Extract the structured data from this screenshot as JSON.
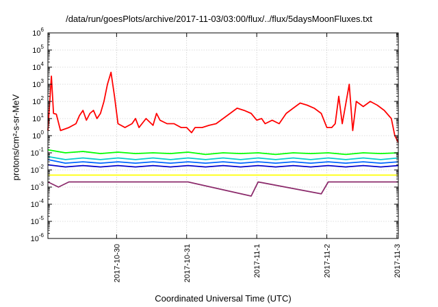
{
  "chart_data": {
    "type": "line",
    "title": "/data/run/goesPlots/archive/2017-11-03/03:00/flux/../flux/5daysMoonFluxes.txt",
    "xlabel": "Coordinated Universal Time (UTC)",
    "ylabel": "protons/cm²-s-sr-MeV",
    "yscale": "log",
    "ylim": [
      1e-06,
      1000000.0
    ],
    "xlim": [
      0,
      5.0
    ],
    "x_unit": "days",
    "yticks": [
      {
        "value": 1e-06,
        "label_base": "10",
        "label_exp": "-6"
      },
      {
        "value": 1e-05,
        "label_base": "10",
        "label_exp": "-5"
      },
      {
        "value": 0.0001,
        "label_base": "10",
        "label_exp": "-4"
      },
      {
        "value": 0.001,
        "label_base": "10",
        "label_exp": "-3"
      },
      {
        "value": 0.01,
        "label_base": "10",
        "label_exp": "-2"
      },
      {
        "value": 0.1,
        "label_base": "10",
        "label_exp": "-1"
      },
      {
        "value": 1,
        "label_base": "10",
        "label_exp": "0"
      },
      {
        "value": 10.0,
        "label_base": "10",
        "label_exp": "1"
      },
      {
        "value": 100.0,
        "label_base": "10",
        "label_exp": "2"
      },
      {
        "value": 1000.0,
        "label_base": "10",
        "label_exp": "3"
      },
      {
        "value": 10000.0,
        "label_base": "10",
        "label_exp": "4"
      },
      {
        "value": 100000.0,
        "label_base": "10",
        "label_exp": "5"
      },
      {
        "value": 1000000.0,
        "label_base": "10",
        "label_exp": "6"
      }
    ],
    "xticks": [
      {
        "x": 0.98,
        "label": "2017-10-30"
      },
      {
        "x": 1.98,
        "label": "2017-10-31"
      },
      {
        "x": 2.98,
        "label": "2017-11-1"
      },
      {
        "x": 3.98,
        "label": "2017-11-2"
      },
      {
        "x": 4.98,
        "label": "2017-11-3"
      }
    ],
    "grid": true,
    "series": [
      {
        "color": "#ff0000",
        "points": [
          [
            0.0,
            2.0
          ],
          [
            0.05,
            3000
          ],
          [
            0.08,
            20
          ],
          [
            0.12,
            18
          ],
          [
            0.18,
            2
          ],
          [
            0.3,
            3
          ],
          [
            0.4,
            5
          ],
          [
            0.45,
            15
          ],
          [
            0.5,
            30
          ],
          [
            0.55,
            8
          ],
          [
            0.6,
            20
          ],
          [
            0.65,
            30
          ],
          [
            0.7,
            10
          ],
          [
            0.75,
            20
          ],
          [
            0.8,
            100
          ],
          [
            0.85,
            1000
          ],
          [
            0.9,
            5000
          ],
          [
            0.95,
            200
          ],
          [
            1.0,
            5
          ],
          [
            1.1,
            3
          ],
          [
            1.2,
            5
          ],
          [
            1.25,
            10
          ],
          [
            1.3,
            3
          ],
          [
            1.4,
            10
          ],
          [
            1.5,
            4
          ],
          [
            1.55,
            20
          ],
          [
            1.6,
            8
          ],
          [
            1.7,
            5
          ],
          [
            1.8,
            5
          ],
          [
            1.9,
            3
          ],
          [
            1.98,
            3
          ],
          [
            2.05,
            1.5
          ],
          [
            2.1,
            3
          ],
          [
            2.2,
            3
          ],
          [
            2.3,
            4
          ],
          [
            2.4,
            5
          ],
          [
            2.5,
            10
          ],
          [
            2.6,
            20
          ],
          [
            2.7,
            40
          ],
          [
            2.8,
            30
          ],
          [
            2.9,
            20
          ],
          [
            2.98,
            8
          ],
          [
            3.05,
            10
          ],
          [
            3.1,
            5
          ],
          [
            3.2,
            8
          ],
          [
            3.3,
            5
          ],
          [
            3.4,
            20
          ],
          [
            3.5,
            40
          ],
          [
            3.6,
            80
          ],
          [
            3.7,
            60
          ],
          [
            3.8,
            40
          ],
          [
            3.9,
            20
          ],
          [
            3.98,
            3
          ],
          [
            4.05,
            3
          ],
          [
            4.1,
            5
          ],
          [
            4.15,
            200
          ],
          [
            4.2,
            5
          ],
          [
            4.3,
            1000
          ],
          [
            4.35,
            2
          ],
          [
            4.4,
            100
          ],
          [
            4.5,
            50
          ],
          [
            4.6,
            100
          ],
          [
            4.7,
            60
          ],
          [
            4.8,
            30
          ],
          [
            4.9,
            10
          ],
          [
            4.95,
            1
          ],
          [
            5.0,
            0.4
          ]
        ]
      },
      {
        "color": "#00ff00",
        "points": [
          [
            0.0,
            0.15
          ],
          [
            0.25,
            0.1
          ],
          [
            0.5,
            0.12
          ],
          [
            0.75,
            0.09
          ],
          [
            1.0,
            0.11
          ],
          [
            1.25,
            0.09
          ],
          [
            1.5,
            0.1
          ],
          [
            1.75,
            0.09
          ],
          [
            2.0,
            0.11
          ],
          [
            2.25,
            0.08
          ],
          [
            2.5,
            0.1
          ],
          [
            2.75,
            0.09
          ],
          [
            3.0,
            0.1
          ],
          [
            3.25,
            0.08
          ],
          [
            3.5,
            0.1
          ],
          [
            3.75,
            0.09
          ],
          [
            4.0,
            0.1
          ],
          [
            4.25,
            0.08
          ],
          [
            4.5,
            0.1
          ],
          [
            4.75,
            0.09
          ],
          [
            5.0,
            0.1
          ]
        ]
      },
      {
        "color": "#00cccc",
        "points": [
          [
            0.0,
            0.06
          ],
          [
            0.25,
            0.04
          ],
          [
            0.5,
            0.05
          ],
          [
            0.75,
            0.04
          ],
          [
            1.0,
            0.05
          ],
          [
            1.25,
            0.04
          ],
          [
            1.5,
            0.05
          ],
          [
            1.75,
            0.04
          ],
          [
            2.0,
            0.05
          ],
          [
            2.25,
            0.04
          ],
          [
            2.5,
            0.05
          ],
          [
            2.75,
            0.04
          ],
          [
            3.0,
            0.05
          ],
          [
            3.25,
            0.04
          ],
          [
            3.5,
            0.05
          ],
          [
            3.75,
            0.04
          ],
          [
            4.0,
            0.05
          ],
          [
            4.25,
            0.04
          ],
          [
            4.5,
            0.05
          ],
          [
            4.75,
            0.04
          ],
          [
            5.0,
            0.05
          ]
        ]
      },
      {
        "color": "#0066ff",
        "points": [
          [
            0.0,
            0.04
          ],
          [
            0.25,
            0.025
          ],
          [
            0.5,
            0.03
          ],
          [
            0.75,
            0.025
          ],
          [
            1.0,
            0.03
          ],
          [
            1.25,
            0.025
          ],
          [
            1.5,
            0.03
          ],
          [
            1.75,
            0.025
          ],
          [
            2.0,
            0.03
          ],
          [
            2.25,
            0.025
          ],
          [
            2.5,
            0.03
          ],
          [
            2.75,
            0.025
          ],
          [
            3.0,
            0.03
          ],
          [
            3.25,
            0.025
          ],
          [
            3.5,
            0.03
          ],
          [
            3.75,
            0.025
          ],
          [
            4.0,
            0.03
          ],
          [
            4.25,
            0.025
          ],
          [
            4.5,
            0.03
          ],
          [
            4.75,
            0.025
          ],
          [
            5.0,
            0.03
          ]
        ]
      },
      {
        "color": "#0000cc",
        "points": [
          [
            0.0,
            0.02
          ],
          [
            0.25,
            0.015
          ],
          [
            0.5,
            0.018
          ],
          [
            0.75,
            0.015
          ],
          [
            1.0,
            0.018
          ],
          [
            1.25,
            0.015
          ],
          [
            1.5,
            0.018
          ],
          [
            1.75,
            0.015
          ],
          [
            2.0,
            0.018
          ],
          [
            2.25,
            0.015
          ],
          [
            2.5,
            0.018
          ],
          [
            2.75,
            0.015
          ],
          [
            3.0,
            0.018
          ],
          [
            3.25,
            0.015
          ],
          [
            3.5,
            0.018
          ],
          [
            3.75,
            0.015
          ],
          [
            4.0,
            0.018
          ],
          [
            4.25,
            0.015
          ],
          [
            4.5,
            0.018
          ],
          [
            4.75,
            0.015
          ],
          [
            5.0,
            0.018
          ]
        ]
      },
      {
        "color": "#ffff00",
        "points": [
          [
            0.0,
            0.005
          ],
          [
            1.0,
            0.005
          ],
          [
            2.0,
            0.005
          ],
          [
            3.0,
            0.005
          ],
          [
            4.0,
            0.005
          ],
          [
            5.0,
            0.005
          ]
        ]
      },
      {
        "color": "#8b2a6b",
        "points": [
          [
            0.0,
            0.002
          ],
          [
            0.15,
            0.001
          ],
          [
            0.3,
            0.002
          ],
          [
            1.0,
            0.002
          ],
          [
            2.0,
            0.002
          ],
          [
            2.9,
            0.0003
          ],
          [
            3.0,
            0.002
          ],
          [
            3.9,
            0.0004
          ],
          [
            4.0,
            0.002
          ],
          [
            5.0,
            0.002
          ]
        ]
      }
    ]
  }
}
